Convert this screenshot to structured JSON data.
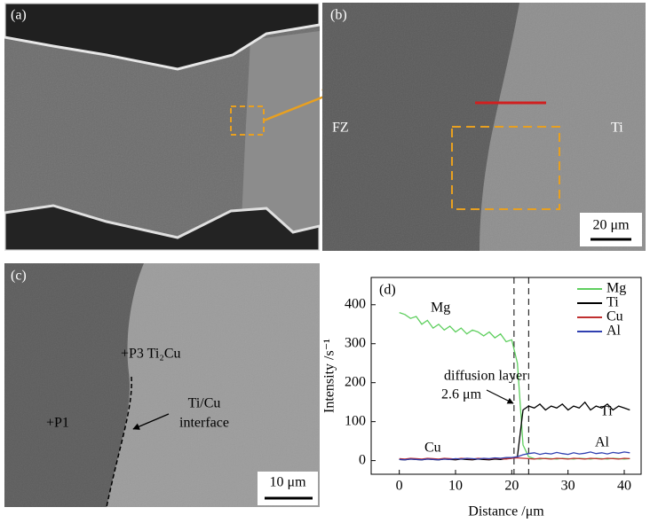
{
  "panels": [
    {
      "label": "(a)"
    },
    {
      "label": "(b)",
      "texts": [
        "FZ",
        "Ti"
      ],
      "scale_bar": "20 μm"
    },
    {
      "label": "(c)",
      "texts": [
        "+P3 Ti₂Cu",
        "+P1",
        "Ti/Cu",
        "interface"
      ],
      "scale_bar": "10 μm"
    }
  ],
  "chart_data": {
    "type": "line",
    "panel_label": "(d)",
    "x_label": "Distance /μm",
    "y_label": "Intensity /s⁻¹",
    "xlim": [
      -5,
      43
    ],
    "xticks": [
      0,
      10,
      20,
      30,
      40
    ],
    "ylim": [
      -35,
      470
    ],
    "yticks": [
      0,
      100,
      200,
      300,
      400
    ],
    "legend": "upper right",
    "vlines": [
      20.4,
      23
    ],
    "annotations": [
      "Mg",
      "Ti",
      "Cu",
      "Al",
      "diffusion layer",
      "2.6 μm"
    ],
    "x": [
      0,
      1,
      2,
      3,
      4,
      5,
      6,
      7,
      8,
      9,
      10,
      11,
      12,
      13,
      14,
      15,
      16,
      17,
      18,
      19,
      20,
      21,
      22,
      23,
      24,
      25,
      26,
      27,
      28,
      29,
      30,
      31,
      32,
      33,
      34,
      35,
      36,
      37,
      38,
      39,
      40,
      41
    ],
    "series": [
      {
        "name": "Mg",
        "color": "#5fcf5f",
        "values": [
          380,
          375,
          365,
          370,
          350,
          360,
          340,
          350,
          335,
          345,
          330,
          340,
          325,
          335,
          330,
          320,
          330,
          315,
          325,
          305,
          310,
          250,
          40,
          10,
          5,
          4,
          6,
          5,
          4,
          6,
          5,
          4,
          6,
          5,
          4,
          6,
          5,
          4,
          6,
          5,
          4,
          5
        ]
      },
      {
        "name": "Ti",
        "color": "#000000",
        "values": [
          3,
          2,
          4,
          3,
          2,
          4,
          3,
          2,
          4,
          3,
          2,
          4,
          3,
          2,
          4,
          3,
          2,
          4,
          3,
          5,
          6,
          10,
          130,
          140,
          135,
          145,
          130,
          140,
          135,
          145,
          130,
          140,
          135,
          150,
          130,
          140,
          135,
          145,
          130,
          140,
          135,
          130
        ]
      },
      {
        "name": "Cu",
        "color": "#c03030",
        "values": [
          5,
          4,
          6,
          5,
          4,
          6,
          5,
          4,
          6,
          5,
          4,
          6,
          5,
          4,
          6,
          5,
          4,
          6,
          5,
          4,
          6,
          7,
          6,
          5,
          4,
          6,
          5,
          4,
          6,
          5,
          4,
          6,
          5,
          4,
          6,
          5,
          4,
          6,
          5,
          4,
          6,
          5
        ]
      },
      {
        "name": "Al",
        "color": "#3040b0",
        "values": [
          3,
          2,
          4,
          3,
          2,
          4,
          3,
          2,
          4,
          3,
          5,
          4,
          6,
          5,
          4,
          6,
          5,
          7,
          6,
          8,
          8,
          10,
          15,
          18,
          20,
          16,
          19,
          17,
          21,
          18,
          16,
          20,
          17,
          19,
          22,
          18,
          20,
          17,
          21,
          19,
          22,
          20
        ]
      }
    ]
  }
}
